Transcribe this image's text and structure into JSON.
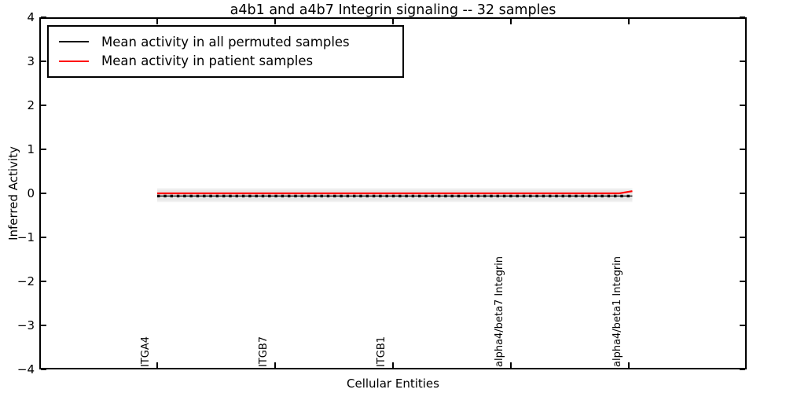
{
  "chart_data": {
    "type": "line",
    "title": "a4b1 and a4b7 Integrin signaling -- 32 samples",
    "xlabel": "Cellular Entities",
    "ylabel": "Inferred Activity",
    "ylim": [
      -4,
      4
    ],
    "yticks": [
      4,
      3,
      2,
      1,
      0,
      -1,
      -2,
      -3,
      -4
    ],
    "xlim": [
      -1,
      5
    ],
    "categories": [
      "ITGA4",
      "ITGB7",
      "ITGB1",
      "alpha4/beta7 Integrin",
      "alpha4/beta1 Integrin"
    ],
    "category_positions": [
      0,
      1,
      2,
      3,
      4
    ],
    "series": [
      {
        "name": "Mean activity in all permuted samples",
        "color": "#000000",
        "line_style": "dashed-with-square-markers",
        "points": [
          [
            0,
            -0.06
          ],
          [
            4.03,
            -0.06
          ]
        ]
      },
      {
        "name": "Mean activity in patient samples",
        "color": "#ff0000",
        "line_style": "solid",
        "points": [
          [
            0,
            0.0
          ],
          [
            3.92,
            0.0
          ],
          [
            4.03,
            0.05
          ]
        ]
      }
    ],
    "bands": [
      {
        "x": [
          0,
          4.03
        ],
        "low": -0.2,
        "high": 0.12,
        "color": "#f3f3f3"
      },
      {
        "x": [
          0,
          4.03
        ],
        "low": -0.165,
        "high": 0.085,
        "color": "#e7e7e7"
      }
    ],
    "legend_position": "upper left",
    "grid": false
  }
}
